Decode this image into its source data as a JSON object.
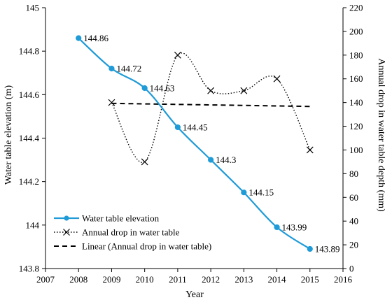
{
  "chart_data": {
    "type": "line",
    "xlabel": "Year",
    "ylabel_left": "Water table elevation (m)",
    "ylabel_right": "Annual drop in water table depth (mm)",
    "x_range": [
      2007,
      2016
    ],
    "x_ticks": [
      "2007",
      "2008",
      "2009",
      "2010",
      "2011",
      "2012",
      "2013",
      "2014",
      "2015",
      "2016"
    ],
    "y_left_range": [
      143.8,
      145
    ],
    "y_left_ticks": [
      "143.8",
      "144",
      "144.2",
      "144.4",
      "144.6",
      "144.8",
      "145"
    ],
    "y_right_range": [
      0,
      220
    ],
    "y_right_ticks": [
      "0",
      "20",
      "40",
      "60",
      "80",
      "100",
      "120",
      "140",
      "160",
      "180",
      "200",
      "220"
    ],
    "grid": false,
    "legend_position": "bottom-left",
    "series": [
      {
        "name": "Water table elevation",
        "axis": "left",
        "style": "solid-smooth-circle",
        "color": "#1f9bd7",
        "x": [
          2008,
          2009,
          2010,
          2011,
          2012,
          2013,
          2014,
          2015
        ],
        "y": [
          144.86,
          144.72,
          144.63,
          144.45,
          144.3,
          144.15,
          143.99,
          143.89
        ],
        "labels": [
          "144.86",
          "144.72",
          "144.63",
          "144.45",
          "144.3",
          "144.15",
          "143.99",
          "143.89"
        ]
      },
      {
        "name": "Annual drop in water table",
        "axis": "right",
        "style": "dotted-smooth-x",
        "color": "#000000",
        "x": [
          2009,
          2010,
          2011,
          2012,
          2013,
          2014,
          2015
        ],
        "y": [
          140,
          90,
          180,
          150,
          150,
          160,
          100
        ]
      },
      {
        "name": "Linear (Annual drop in water table)",
        "axis": "right",
        "style": "dashed",
        "color": "#000000",
        "x": [
          2009,
          2015
        ],
        "y": [
          139.3,
          136.7
        ]
      }
    ]
  }
}
